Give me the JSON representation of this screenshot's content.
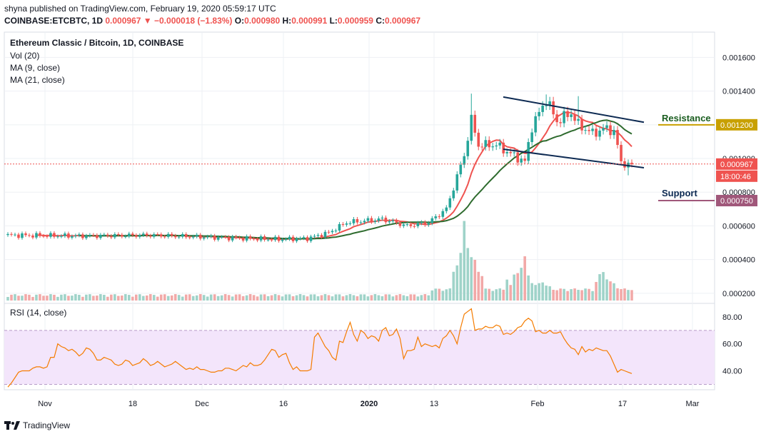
{
  "header": {
    "publish_line": "shyna published on TradingView.com, February 19, 2020 05:59:17 UTC",
    "symbol": "COINBASE:ETCBTC, 1D",
    "price": "0.000967",
    "arrow": "▼",
    "change": "−0.000018 (−1.83%)",
    "o_label": "O:",
    "o_value": "0.000980",
    "h_label": "H:",
    "h_value": "0.000991",
    "l_label": "L:",
    "l_value": "0.000959",
    "c_label": "C:",
    "c_value": "0.000967"
  },
  "legend": {
    "title": "Ethereum Classic / Bitcoin, 1D, COINBASE",
    "vol": "Vol (20)",
    "ma9": "MA (9, close)",
    "ma21": "MA (21, close)"
  },
  "colors": {
    "up": "#26a69a",
    "down": "#ef5350",
    "ma9": "#ef5350",
    "ma21": "#2e6b2e",
    "resistance": "#c8a000",
    "support": "#a0577a",
    "rsi": "#f57c00",
    "rsi_band": "#f3e5fb",
    "trend": "#0d2a52"
  },
  "footer": {
    "brand": "TradingView"
  },
  "chart_data": {
    "type": "candlestick",
    "price_axis": {
      "ticks": [
        "0.001600",
        "0.001400",
        "0.001200",
        "0.001000",
        "0.000800",
        "0.000600",
        "0.000400",
        "0.000200"
      ],
      "range": [
        0.00014,
        0.00175
      ]
    },
    "time_axis": {
      "labels": [
        "Nov",
        "18",
        "Dec",
        "16",
        "2020",
        "13",
        "Feb",
        "17",
        "Mar"
      ]
    },
    "last_price": {
      "value": "0.000967",
      "countdown": "18:00:46"
    },
    "annotations": [
      {
        "text": "Resistance",
        "value": "0.001200"
      },
      {
        "text": "Support",
        "value": "0.000750"
      }
    ],
    "rsi": {
      "title": "RSI (14, close)",
      "ticks": [
        "80.00",
        "60.00",
        "40.00"
      ],
      "upper_band": 70,
      "lower_band": 30,
      "values": [
        28,
        31,
        35,
        39,
        40,
        40,
        40,
        42,
        43,
        43,
        42,
        43,
        50,
        50,
        60,
        58,
        57,
        55,
        56,
        54,
        51,
        53,
        57,
        56,
        53,
        48,
        48,
        50,
        49,
        48,
        45,
        44,
        45,
        48,
        47,
        44,
        45,
        46,
        49,
        47,
        44,
        45,
        47,
        45,
        43,
        44,
        45,
        47,
        45,
        43,
        41,
        42,
        41,
        43,
        41,
        41,
        40,
        39,
        39,
        40,
        40,
        42,
        42,
        41,
        40,
        42,
        44,
        43,
        46,
        44,
        44,
        45,
        48,
        52,
        56,
        55,
        50,
        52,
        53,
        46,
        41,
        43,
        40,
        40,
        40,
        41,
        65,
        68,
        63,
        58,
        55,
        50,
        48,
        62,
        61,
        69,
        76,
        67,
        62,
        70,
        68,
        64,
        66,
        65,
        62,
        70,
        72,
        66,
        67,
        71,
        64,
        49,
        55,
        55,
        56,
        65,
        58,
        60,
        59,
        58,
        59,
        57,
        64,
        66,
        70,
        66,
        60,
        72,
        82,
        84,
        86,
        70,
        71,
        71,
        73,
        72,
        72,
        74,
        73,
        67,
        68,
        67,
        69,
        72,
        73,
        77,
        79,
        77,
        69,
        70,
        68,
        68,
        70,
        68,
        68,
        69,
        64,
        60,
        57,
        56,
        52,
        58,
        54,
        56,
        55,
        57,
        56,
        55,
        55,
        51,
        45,
        39,
        41,
        40,
        39,
        38
      ]
    },
    "trendlines": [
      {
        "name": "upper",
        "from": [
          0,
          0.001365
        ],
        "to": [
          1,
          0.001215
        ]
      },
      {
        "name": "lower",
        "from": [
          0,
          0.001055
        ],
        "to": [
          1,
          0.000945
        ]
      }
    ]
  }
}
